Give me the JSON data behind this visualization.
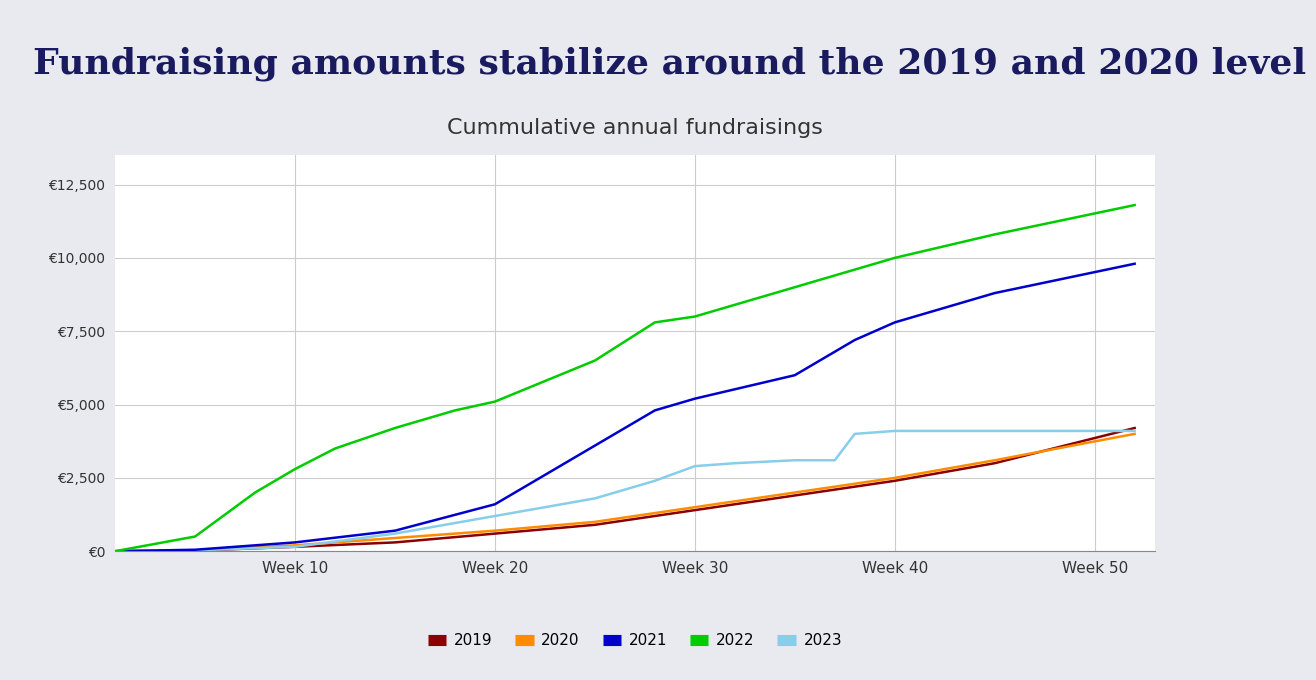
{
  "title": "Fundraising amounts stabilize around the 2019 and 2020 level",
  "subtitle": "Cummulative annual fundraisings",
  "header_bg": "#e8eaf0",
  "chart_bg": "#ffffff",
  "title_color": "#1a1a5e",
  "title_fontsize": 26,
  "subtitle_fontsize": 16,
  "ylim": [
    0,
    13500
  ],
  "yticks": [
    0,
    2500,
    5000,
    7500,
    10000,
    12500
  ],
  "ytick_labels": [
    "€0",
    "€2,500",
    "€5,000",
    "€7,500",
    "€10,000",
    "€12,500"
  ],
  "xtick_positions": [
    10,
    20,
    30,
    40,
    50
  ],
  "xtick_labels": [
    "Week 10",
    "Week 20",
    "Week 30",
    "Week 40",
    "Week 50"
  ],
  "xlim": [
    1,
    53
  ],
  "series": {
    "2019": {
      "color": "#8b0000"
    },
    "2020": {
      "color": "#ff8c00"
    },
    "2021": {
      "color": "#0000cd"
    },
    "2022": {
      "color": "#00cc00"
    },
    "2023": {
      "color": "#87ceeb"
    }
  },
  "legend_order": [
    "2019",
    "2020",
    "2021",
    "2022",
    "2023"
  ]
}
